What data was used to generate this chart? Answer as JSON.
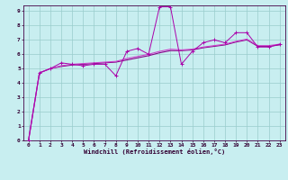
{
  "title": "",
  "xlabel": "Windchill (Refroidissement éolien,°C)",
  "background_color": "#c8eef0",
  "line_color1": "#aa00aa",
  "line_color2": "#880088",
  "line_color3": "#cc44cc",
  "grid_color": "#99cccc",
  "xlim": [
    -0.5,
    23.5
  ],
  "ylim": [
    0,
    9.4
  ],
  "xticks": [
    0,
    1,
    2,
    3,
    4,
    5,
    6,
    7,
    8,
    9,
    10,
    11,
    12,
    13,
    14,
    15,
    16,
    17,
    18,
    19,
    20,
    21,
    22,
    23
  ],
  "yticks": [
    0,
    1,
    2,
    3,
    4,
    5,
    6,
    7,
    8,
    9
  ],
  "x": [
    0,
    1,
    2,
    3,
    4,
    5,
    6,
    7,
    8,
    9,
    10,
    11,
    12,
    13,
    14,
    15,
    16,
    17,
    18,
    19,
    20,
    21,
    22,
    23
  ],
  "y_jagged": [
    0.0,
    4.7,
    5.0,
    5.4,
    5.3,
    5.2,
    5.3,
    5.3,
    4.5,
    6.2,
    6.4,
    6.0,
    9.3,
    9.3,
    5.3,
    6.2,
    6.8,
    7.0,
    6.8,
    7.5,
    7.5,
    6.5,
    6.5,
    6.7
  ],
  "y_smooth1": [
    0.0,
    4.7,
    5.0,
    5.15,
    5.25,
    5.3,
    5.35,
    5.4,
    5.45,
    5.6,
    5.75,
    5.9,
    6.1,
    6.25,
    6.25,
    6.3,
    6.45,
    6.55,
    6.65,
    6.85,
    7.0,
    6.55,
    6.55,
    6.65
  ],
  "y_smooth2": [
    0.0,
    4.7,
    5.0,
    5.2,
    5.3,
    5.35,
    5.4,
    5.45,
    5.5,
    5.7,
    5.85,
    6.0,
    6.2,
    6.35,
    6.3,
    6.35,
    6.5,
    6.6,
    6.7,
    6.9,
    7.05,
    6.6,
    6.6,
    6.7
  ]
}
